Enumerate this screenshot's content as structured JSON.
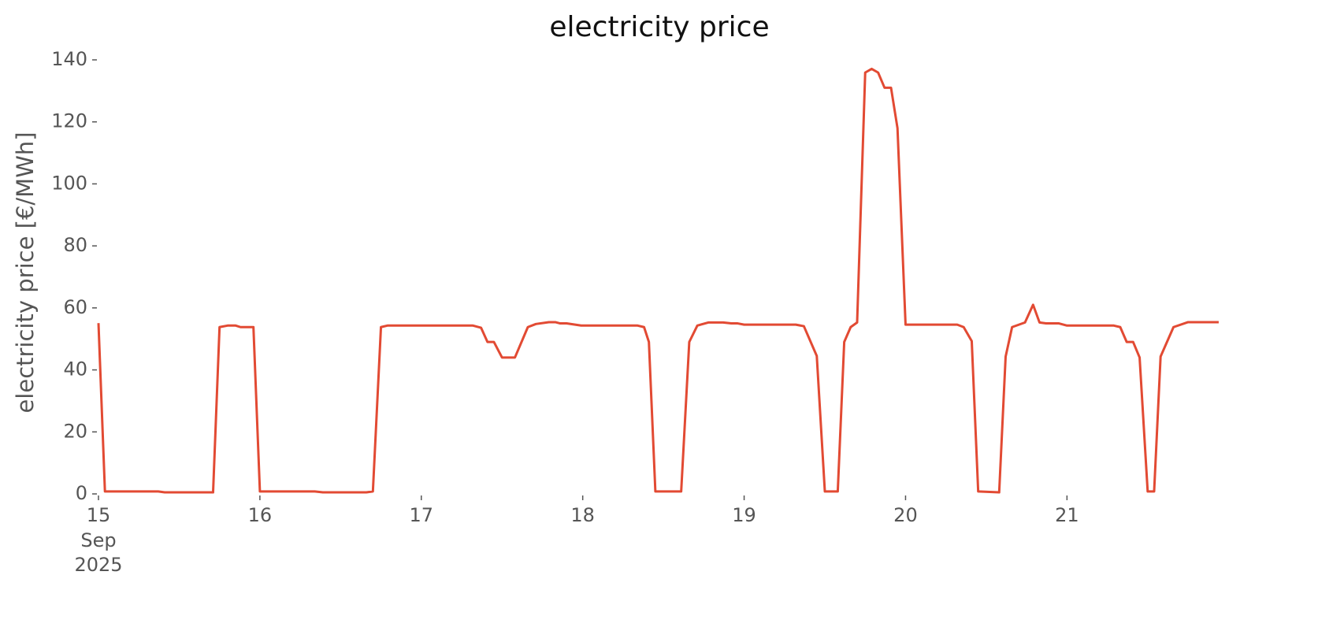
{
  "chart_data": {
    "type": "line",
    "title": "electricity price",
    "ylabel": "electricity price [€/MWh]",
    "x": [
      15.0,
      15.04,
      15.37,
      15.41,
      15.71,
      15.75,
      15.8,
      15.85,
      15.88,
      15.96,
      16.0,
      16.34,
      16.39,
      16.66,
      16.7,
      16.75,
      16.79,
      17.32,
      17.37,
      17.41,
      17.45,
      17.5,
      17.58,
      17.66,
      17.71,
      17.79,
      17.83,
      17.86,
      17.9,
      17.99,
      18.34,
      18.38,
      18.41,
      18.45,
      18.61,
      18.66,
      18.71,
      18.78,
      18.87,
      18.92,
      18.96,
      19.0,
      19.32,
      19.37,
      19.45,
      19.5,
      19.58,
      19.62,
      19.66,
      19.7,
      19.75,
      19.79,
      19.83,
      19.87,
      19.91,
      19.95,
      20.0,
      20.32,
      20.36,
      20.41,
      20.45,
      20.58,
      20.62,
      20.66,
      20.74,
      20.79,
      20.83,
      20.87,
      20.95,
      21.0,
      21.29,
      21.33,
      21.37,
      21.41,
      21.45,
      21.5,
      21.54,
      21.58,
      21.66,
      21.75,
      21.94
    ],
    "series": [
      {
        "name": "electricity price",
        "color": "#e24a33",
        "values": [
          55.1,
          0.8,
          0.8,
          0.5,
          0.5,
          53.8,
          54.3,
          54.3,
          53.8,
          53.8,
          0.8,
          0.8,
          0.5,
          0.5,
          0.8,
          53.8,
          54.3,
          54.3,
          53.6,
          49,
          49,
          44,
          44,
          53.8,
          54.8,
          55.4,
          55.4,
          55,
          55,
          54.3,
          54.3,
          53.8,
          49,
          0.8,
          0.8,
          49,
          54.3,
          55.3,
          55.3,
          55,
          55,
          54.6,
          54.6,
          54.1,
          44.5,
          0.8,
          0.8,
          49,
          53.8,
          55.3,
          135.9,
          137.1,
          135.9,
          131,
          131,
          118,
          54.6,
          54.6,
          53.8,
          49.3,
          0.8,
          0.5,
          44.3,
          53.8,
          55.3,
          61,
          55.3,
          55,
          55,
          54.3,
          54.3,
          53.8,
          49,
          49,
          44,
          0.8,
          0.8,
          44.3,
          53.8,
          55.4,
          55.4
        ]
      }
    ],
    "xlim": [
      15,
      21.95
    ],
    "xticks": [
      15,
      16,
      17,
      18,
      19,
      20,
      21
    ],
    "xtick_sublabels": [
      "Sep",
      "2025"
    ],
    "ylim": [
      0,
      140
    ],
    "yticks": [
      0,
      20,
      40,
      60,
      80,
      100,
      120,
      140
    ]
  }
}
